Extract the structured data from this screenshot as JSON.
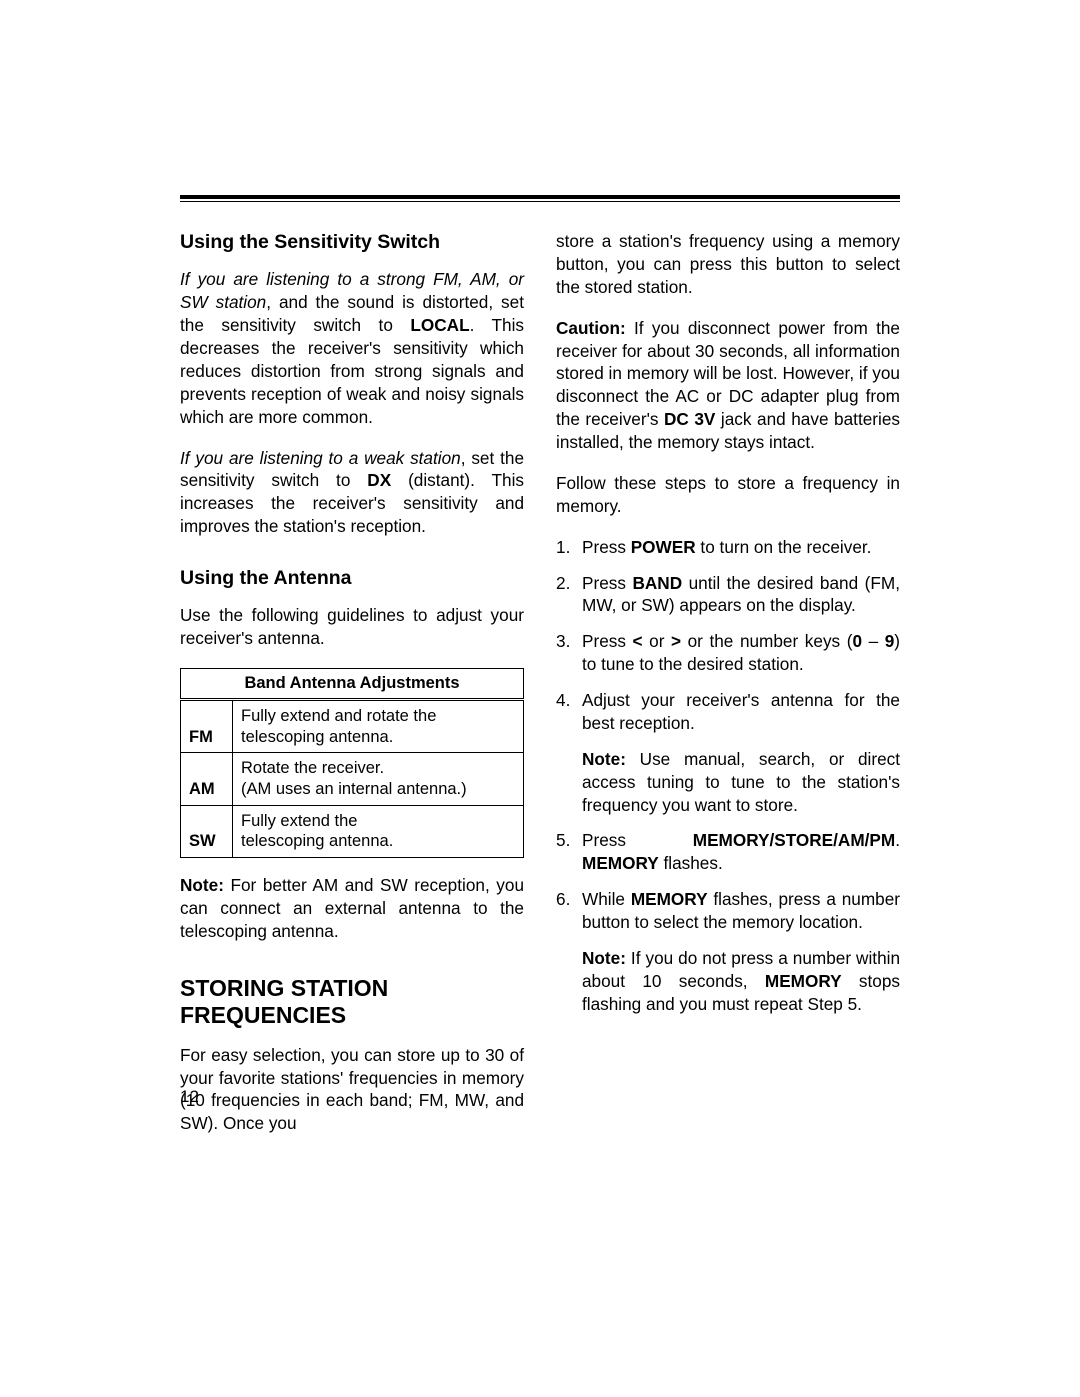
{
  "page_number": "12",
  "left": {
    "h_sensitivity": "Using the Sensitivity Switch",
    "sens_p1_i": "If you are listening to a strong FM, AM, or SW station",
    "sens_p1_mid": ", and the sound is distorted, set the sensitivity switch to ",
    "sens_p1_b": "LOCAL",
    "sens_p1_end": ". This decreases the receiver's sensitivity which reduces distortion from strong signals and prevents reception of weak and noisy signals which are more common.",
    "sens_p2_i": "If you are listening to a weak station",
    "sens_p2_mid": ", set the sensitivity switch to ",
    "sens_p2_b": "DX",
    "sens_p2_end": " (distant). This increases the receiver's sensitivity and improves the station's reception.",
    "h_antenna": "Using the Antenna",
    "ant_intro": "Use the following guidelines to adjust your receiver's antenna.",
    "table_header": "Band Antenna Adjustments",
    "rows": [
      {
        "band": "FM",
        "adj": "Fully extend and rotate the telescoping antenna."
      },
      {
        "band": "AM",
        "adj": "Rotate the receiver.\n(AM uses an internal antenna.)"
      },
      {
        "band": "SW",
        "adj": "Fully extend the\ntelescoping antenna."
      }
    ],
    "ant_note_b": "Note:",
    "ant_note": " For better AM and SW reception, you can connect an external antenna to the telescoping antenna.",
    "h_storing": "STORING STATION FREQUENCIES",
    "store_intro": "For easy selection, you can store up to 30 of your favorite stations' frequencies in memory (10 frequencies in each band; FM, MW, and SW). Once you"
  },
  "right": {
    "store_cont": "store a station's frequency using a memory button, you can press this button to select the stored station.",
    "caution_b": "Caution:",
    "caution_1": " If you disconnect power from the receiver for about 30 seconds, all information stored in memory will be lost. However, if you disconnect the AC or DC adapter plug from the receiver's ",
    "caution_b2": "DC 3V",
    "caution_2": " jack and have batteries installed, the memory stays intact.",
    "follow": "Follow these steps to store a frequency in memory.",
    "steps": {
      "s1_a": "Press ",
      "s1_b": "POWER",
      "s1_c": " to turn on the receiver.",
      "s2_a": "Press ",
      "s2_b": "BAND",
      "s2_c": " until the desired band (FM, MW, or SW) appears on the display.",
      "s3_a": "Press ",
      "s3_b1": "<",
      "s3_m1": " or ",
      "s3_b2": ">",
      "s3_m2": " or the number keys (",
      "s3_b3": "0",
      "s3_m3": " – ",
      "s3_b4": "9",
      "s3_c": ") to tune to the desired station.",
      "s4": "Adjust your receiver's antenna for the best reception.",
      "s4_note_b": "Note:",
      "s4_note": " Use manual, search, or direct access tuning to tune to the station's frequency you want to store.",
      "s5_a": "Press ",
      "s5_b": "MEMORY/STORE/AM/PM",
      "s5_c": ". ",
      "s5_b2": "MEMORY",
      "s5_d": " flashes.",
      "s6_a": "While ",
      "s6_b": "MEMORY",
      "s6_c": " flashes, press a number button to select the memory location.",
      "s6_note_b": "Note:",
      "s6_note_a": " If you do not press a number within about 10 seconds, ",
      "s6_note_b2": "MEMORY",
      "s6_note_c": " stops flashing and you must repeat Step 5."
    }
  }
}
